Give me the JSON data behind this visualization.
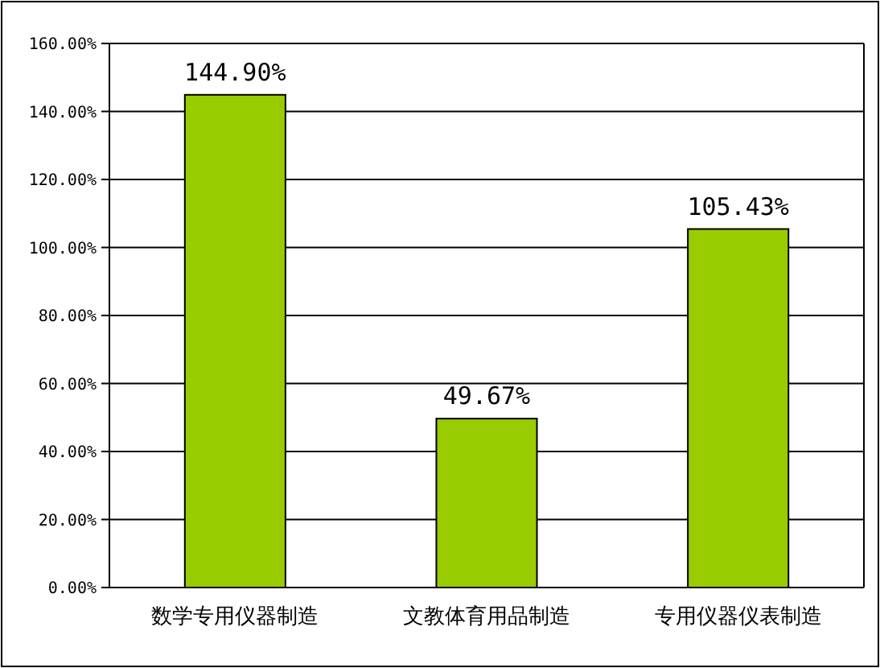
{
  "chart_data": {
    "type": "bar",
    "categories": [
      "数学专用仪器制造",
      "文教体育用品制造",
      "专用仪器仪表制造"
    ],
    "values": [
      144.9,
      49.67,
      105.43
    ],
    "color": "#99cc00",
    "value_labels": [
      "144.90%",
      "49.67%",
      "105.43%"
    ],
    "ylim": [
      0,
      160
    ],
    "yticks": [
      {
        "value": 0,
        "label": "0.00%"
      },
      {
        "value": 20,
        "label": "20.00%"
      },
      {
        "value": 40,
        "label": "40.00%"
      },
      {
        "value": 60,
        "label": "60.00%"
      },
      {
        "value": 80,
        "label": "80.00%"
      },
      {
        "value": 100,
        "label": "100.00%"
      },
      {
        "value": 120,
        "label": "120.00%"
      },
      {
        "value": 140,
        "label": "140.00%"
      },
      {
        "value": 160,
        "label": "160.00%"
      }
    ],
    "grid": "y"
  }
}
